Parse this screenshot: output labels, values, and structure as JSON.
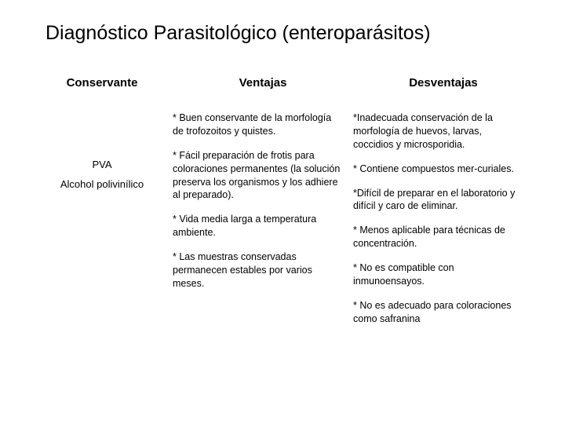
{
  "title": "Diagnóstico Parasitológico (enteroparásitos)",
  "headers": {
    "col1": "Conservante",
    "col2": "Ventajas",
    "col3": "Desventajas"
  },
  "row": {
    "label_main": "PVA",
    "label_sub": "Alcohol polivinílico"
  },
  "advantages": [
    "* Buen conservante de la morfología de trofozoitos y quistes.",
    "* Fácil preparación de frotis para coloraciones permanentes (la solución preserva los organismos y los adhiere al preparado).",
    "* Vida media larga a temperatura ambiente.",
    "* Las muestras conservadas permanecen estables por varios meses."
  ],
  "disadvantages": [
    "*Inadecuada conservación de la morfología de huevos, larvas, coccidios y microsporidia.",
    "* Contiene compuestos mer-curiales.",
    "*Difícil de preparar en el laboratorio y difícil y caro de eliminar.",
    "* Menos aplicable para técnicas de concentración.",
    "* No es compatible con inmunoensayos.",
    "* No es adecuado para coloraciones como safranina"
  ]
}
